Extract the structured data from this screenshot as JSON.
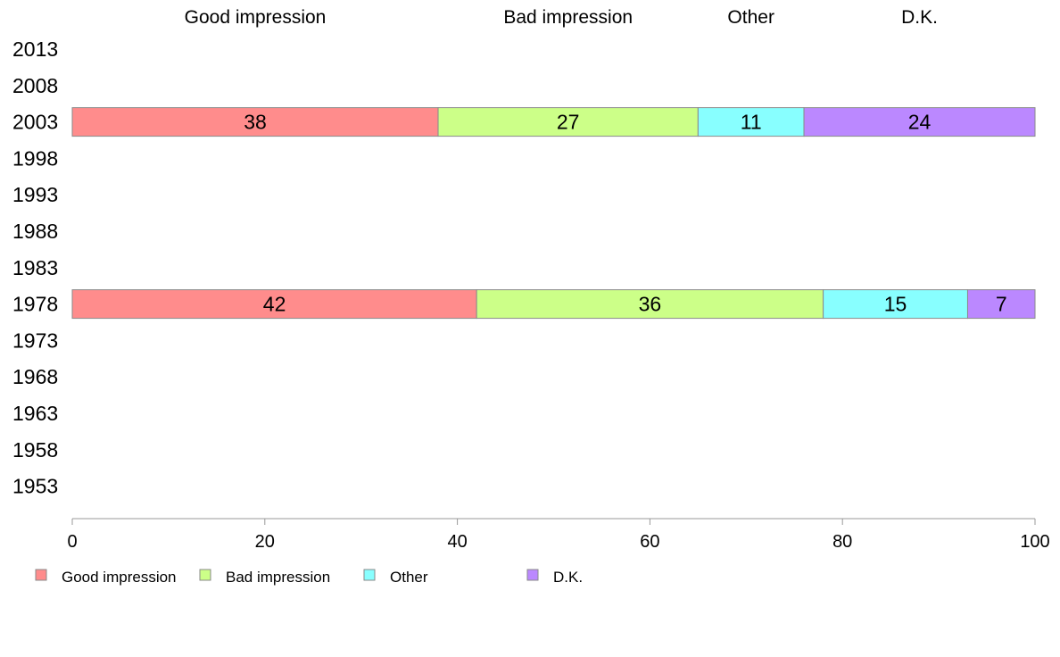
{
  "chart_data": {
    "type": "bar",
    "orientation": "horizontal",
    "stacked": true,
    "categories": [
      "2013",
      "2008",
      "2003",
      "1998",
      "1993",
      "1988",
      "1983",
      "1978",
      "1973",
      "1968",
      "1963",
      "1958",
      "1953"
    ],
    "series": [
      {
        "name": "Good impression",
        "color": "#FF8C8C",
        "values": [
          null,
          null,
          38,
          null,
          null,
          null,
          null,
          42,
          null,
          null,
          null,
          null,
          null
        ]
      },
      {
        "name": "Bad impression",
        "color": "#CCFF88",
        "values": [
          null,
          null,
          27,
          null,
          null,
          null,
          null,
          36,
          null,
          null,
          null,
          null,
          null
        ]
      },
      {
        "name": "Other",
        "color": "#88FFFF",
        "values": [
          null,
          null,
          11,
          null,
          null,
          null,
          null,
          15,
          null,
          null,
          null,
          null,
          null
        ]
      },
      {
        "name": "D.K.",
        "color": "#BB88FF",
        "values": [
          null,
          null,
          24,
          null,
          null,
          null,
          null,
          7,
          null,
          null,
          null,
          null,
          null
        ]
      }
    ],
    "top_labels": [
      "Good impression",
      "Bad impression",
      "Other",
      "D.K."
    ],
    "xlim": [
      0,
      100
    ],
    "xticks": [
      0,
      20,
      40,
      60,
      80,
      100
    ],
    "grid": false,
    "legend_position": "bottom-left",
    "title": "",
    "xlabel": "",
    "ylabel": ""
  }
}
